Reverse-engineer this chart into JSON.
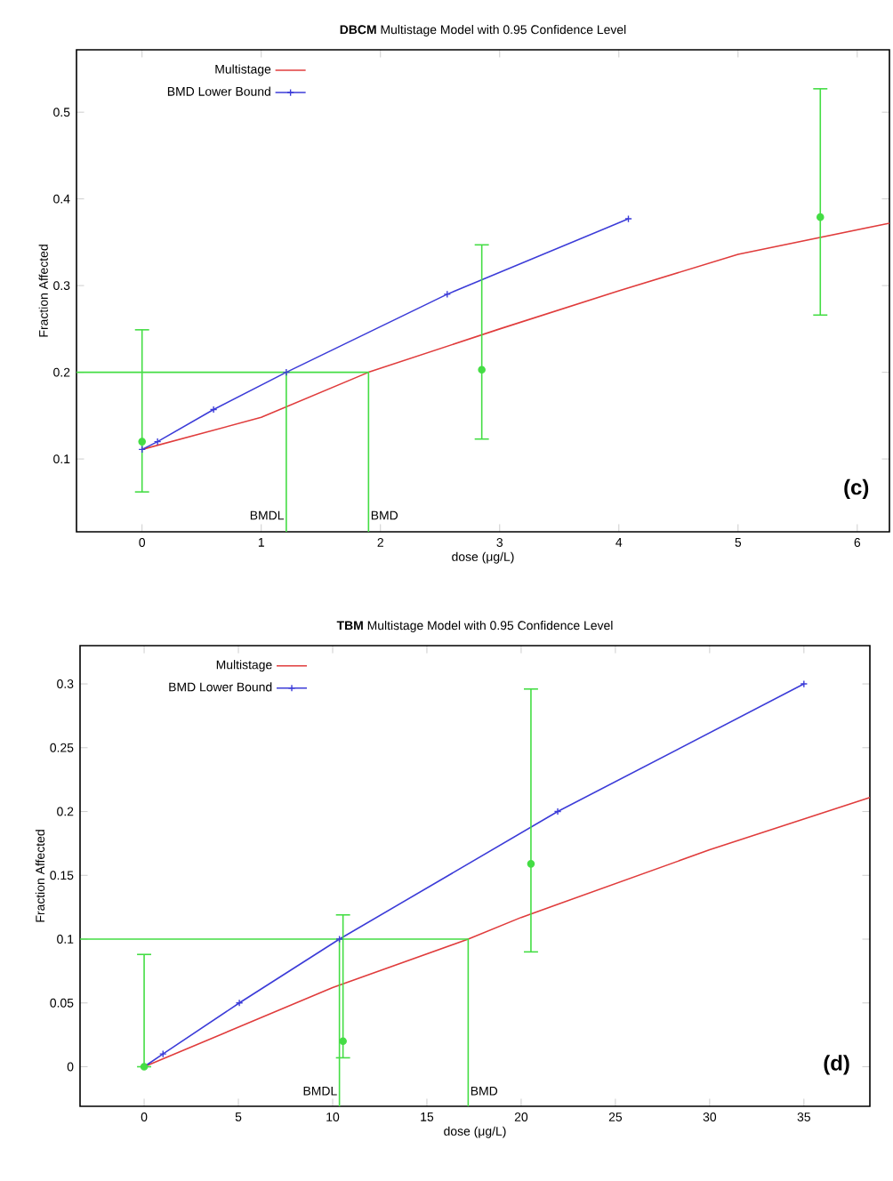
{
  "chart_data": [
    {
      "type": "line",
      "title": "**DBCM** Multistage Model with 0.95 Confidence Level",
      "xlabel": "dose (μg/L)",
      "ylabel": "Fraction Affected",
      "xlim": [
        -0.55,
        6.27
      ],
      "ylim": [
        0.016,
        0.572
      ],
      "xticks": [
        0,
        1,
        2,
        3,
        4,
        5,
        6
      ],
      "yticks": [
        0.1,
        0.2,
        0.3,
        0.4,
        0.5
      ],
      "legend": "top left",
      "series": [
        {
          "name": "Multistage",
          "color": "#e03c3c",
          "marker": "none",
          "x": [
            0,
            1,
            1.9,
            3,
            4,
            5,
            6.27
          ],
          "values": [
            0.111,
            0.148,
            0.2,
            0.25,
            0.294,
            0.336,
            0.372
          ]
        },
        {
          "name": "BMD Lower Bound",
          "color": "#3c3cd8",
          "marker": "cross",
          "x": [
            0,
            0.13,
            0.6,
            1.21,
            2.56,
            4.08
          ],
          "values": [
            0.111,
            0.12,
            0.157,
            0.2,
            0.29,
            0.377
          ]
        },
        {
          "type": "scatter",
          "color": "#44dd44",
          "marker": "circle",
          "x": [
            0,
            2.85,
            5.69
          ],
          "values": [
            0.12,
            0.203,
            0.379
          ],
          "errors": [
            [
              0.062,
              0.249
            ],
            [
              0.123,
              0.347
            ],
            [
              0.266,
              0.527
            ]
          ]
        },
        {
          "color": "#44dd44",
          "marker": "none",
          "x": [
            -0.55,
            1.9,
            1.9
          ],
          "values": [
            0.2,
            0.2,
            0.016
          ]
        },
        {
          "color": "#44dd44",
          "marker": "none",
          "x": [
            1.21,
            1.21
          ],
          "values": [
            0.2,
            0.016
          ]
        }
      ],
      "annotations": [
        {
          "text": "BMDL",
          "x": 1.21,
          "y": 0.035
        },
        {
          "text": "BMD",
          "x": 1.9,
          "y": 0.035
        },
        "(c)"
      ]
    },
    {
      "type": "line",
      "title": "**TBM** Multistage Model with 0.95 Confidence Level",
      "xlabel": "dose (μg/L)",
      "ylabel": "Fraction Affected",
      "xlim": [
        -3.4,
        38.5
      ],
      "ylim": [
        -0.031,
        0.33
      ],
      "xticks": [
        0,
        5,
        10,
        15,
        20,
        25,
        30,
        35
      ],
      "yticks": [
        0,
        0.05,
        0.1,
        0.15,
        0.2,
        0.25,
        0.3
      ],
      "legend": "top left",
      "series": [
        {
          "name": "Multistage",
          "color": "#e03c3c",
          "marker": "none",
          "x": [
            0,
            10,
            17.19,
            20,
            30,
            38.5
          ],
          "values": [
            0,
            0.062,
            0.1,
            0.117,
            0.17,
            0.211
          ]
        },
        {
          "name": "BMD Lower Bound",
          "color": "#3c3cd8",
          "marker": "cross",
          "x": [
            0,
            1,
            5.05,
            10.36,
            21.94,
            35
          ],
          "values": [
            0,
            0.01,
            0.05,
            0.1,
            0.2,
            0.3
          ]
        },
        {
          "type": "scatter",
          "color": "#44dd44",
          "marker": "circle",
          "x": [
            0,
            10.55,
            20.52
          ],
          "values": [
            0,
            0.02,
            0.159
          ],
          "errors": [
            [
              0,
              0.088
            ],
            [
              0.007,
              0.119
            ],
            [
              0.09,
              0.296
            ]
          ]
        },
        {
          "color": "#44dd44",
          "marker": "none",
          "x": [
            -3.4,
            17.19,
            17.19
          ],
          "values": [
            0.1,
            0.1,
            -0.031
          ]
        },
        {
          "color": "#44dd44",
          "marker": "none",
          "x": [
            10.36,
            10.36
          ],
          "values": [
            0.1,
            -0.031
          ]
        }
      ],
      "annotations": [
        {
          "text": "BMDL",
          "x": 10.36,
          "y": -0.019
        },
        {
          "text": "BMD",
          "x": 17.19,
          "y": -0.019
        },
        "(d)"
      ]
    }
  ]
}
